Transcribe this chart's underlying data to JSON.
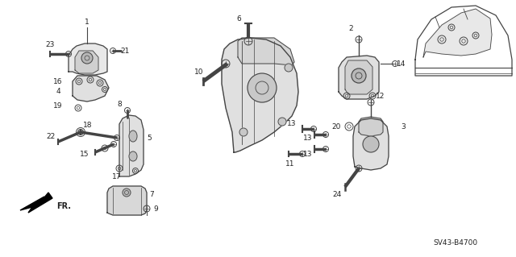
{
  "background_color": "#ffffff",
  "diagram_code": "SV43-B4700",
  "fig_width": 6.4,
  "fig_height": 3.19,
  "dpi": 100,
  "line_color": "#444444",
  "text_color": "#222222",
  "font_size": 7.0
}
